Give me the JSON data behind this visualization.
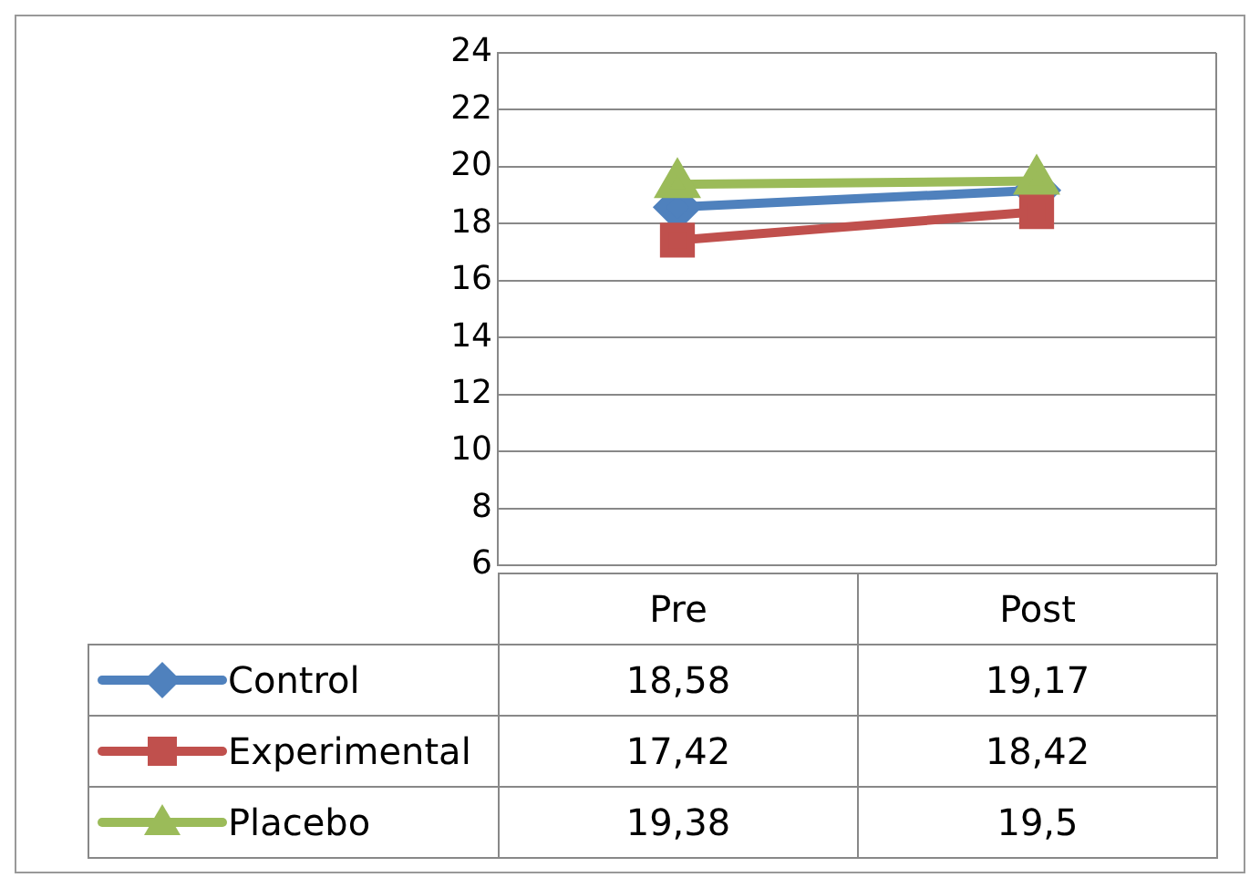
{
  "chart_data": {
    "type": "line",
    "categories": [
      "Pre",
      "Post"
    ],
    "series": [
      {
        "name": "Control",
        "color": "#4f81bd",
        "marker": "diamond",
        "values": [
          18.58,
          19.17
        ],
        "value_labels": [
          "18,58",
          "19,17"
        ]
      },
      {
        "name": "Experimental",
        "color": "#c0504d",
        "marker": "square",
        "values": [
          17.42,
          18.42
        ],
        "value_labels": [
          "17,42",
          "18,42"
        ]
      },
      {
        "name": "Placebo",
        "color": "#9bbb59",
        "marker": "triangle",
        "values": [
          19.38,
          19.5
        ],
        "value_labels": [
          "19,38",
          "19,5"
        ]
      }
    ],
    "ylim": [
      6,
      24
    ],
    "yticks": [
      6,
      8,
      10,
      12,
      14,
      16,
      18,
      20,
      22,
      24
    ],
    "grid": "y",
    "legend": "bottom left"
  }
}
